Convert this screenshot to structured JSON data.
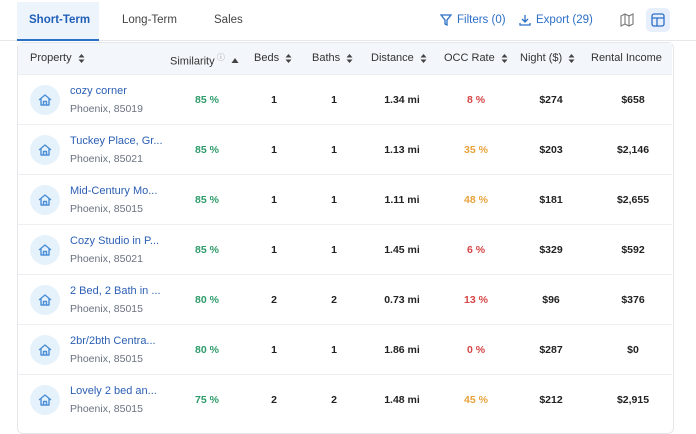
{
  "tabs": [
    "Short-Term",
    "Long-Term",
    "Sales"
  ],
  "actions": {
    "filters": "Filters (0)",
    "export": "Export (29)"
  },
  "table": {
    "headers": [
      "Property",
      "Similarity",
      "Beds",
      "Baths",
      "Distance",
      "OCC Rate",
      "Night ($)",
      "Rental Income"
    ],
    "rows": [
      {
        "name": "cozy corner",
        "location": "Phoenix, 85019",
        "similarity": "85 %",
        "beds": "1",
        "baths": "1",
        "distance": "1.34 mi",
        "occ": "8 %",
        "occ_color": "#d64545",
        "night": "$274",
        "income": "$658"
      },
      {
        "name": "Tuckey Place, Gr...",
        "location": "Phoenix, 85021",
        "similarity": "85 %",
        "beds": "1",
        "baths": "1",
        "distance": "1.13 mi",
        "occ": "35 %",
        "occ_color": "#e9a23b",
        "night": "$203",
        "income": "$2,146"
      },
      {
        "name": "Mid-Century Mo...",
        "location": "Phoenix, 85015",
        "similarity": "85 %",
        "beds": "1",
        "baths": "1",
        "distance": "1.11 mi",
        "occ": "48 %",
        "occ_color": "#e9a23b",
        "night": "$181",
        "income": "$2,655"
      },
      {
        "name": "Cozy Studio in P...",
        "location": "Phoenix, 85021",
        "similarity": "85 %",
        "beds": "1",
        "baths": "1",
        "distance": "1.45 mi",
        "occ": "6 %",
        "occ_color": "#d64545",
        "night": "$329",
        "income": "$592"
      },
      {
        "name": "2 Bed, 2 Bath in ...",
        "location": "Phoenix, 85015",
        "similarity": "80 %",
        "beds": "2",
        "baths": "2",
        "distance": "0.73 mi",
        "occ": "13 %",
        "occ_color": "#d64545",
        "night": "$96",
        "income": "$376"
      },
      {
        "name": "2br/2bth Centra...",
        "location": "Phoenix, 85015",
        "similarity": "80 %",
        "beds": "1",
        "baths": "1",
        "distance": "1.86 mi",
        "occ": "0 %",
        "occ_color": "#d64545",
        "night": "$287",
        "income": "$0"
      },
      {
        "name": "Lovely 2 bed an...",
        "location": "Phoenix, 85015",
        "similarity": "75 %",
        "beds": "2",
        "baths": "2",
        "distance": "1.48 mi",
        "occ": "45 %",
        "occ_color": "#e9a23b",
        "night": "$212",
        "income": "$2,915"
      }
    ]
  }
}
